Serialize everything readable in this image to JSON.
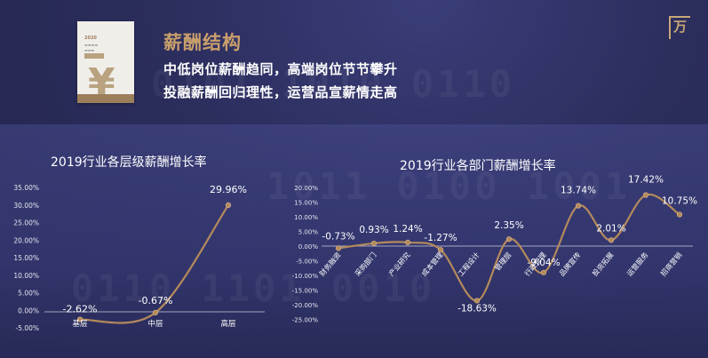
{
  "header": {
    "title": "薪酬结构",
    "line1": "中低岗位薪酬趋同，高端岗位节节攀升",
    "line2": "投融薪酬回归理性，运营品宣薪情走高"
  },
  "cover": {
    "year": "2020",
    "yen_symbol": "¥"
  },
  "logo": {
    "mark": "万"
  },
  "colors": {
    "line": "#b48a5c",
    "accent": "#c99f6b",
    "background": "#2a2c57"
  },
  "chart_data": [
    {
      "type": "line",
      "title": "2019行业各层级薪酬增长率",
      "categories": [
        "基层",
        "中层",
        "高层"
      ],
      "values": [
        -2.62,
        -0.67,
        29.96
      ],
      "data_labels": [
        "-2.62%",
        "-0.67%",
        "29.96%"
      ],
      "y_ticks": [
        "35.00%",
        "30.00%",
        "25.00%",
        "20.00%",
        "15.00%",
        "10.00%",
        "5.00%",
        "0.00%",
        "-5.00%"
      ],
      "ylim": [
        -5,
        35
      ],
      "smooth": true,
      "grid": false
    },
    {
      "type": "line",
      "title": "2019行业各部门薪酬增长率",
      "categories": [
        "财务融资",
        "采购部门",
        "产业研究",
        "成本管理",
        "工程设计",
        "管理层",
        "行政管理",
        "品牌宣传",
        "投资拓展",
        "运营服务",
        "招商营销"
      ],
      "values": [
        -0.73,
        0.93,
        1.24,
        -1.27,
        -18.63,
        2.35,
        -9.04,
        13.74,
        2.01,
        17.42,
        10.75
      ],
      "data_labels": [
        "-0.73%",
        "0.93%",
        "1.24%",
        "-1.27%",
        "-18.63%",
        "2.35%",
        "-9.04%",
        "13.74%",
        "2.01%",
        "17.42%",
        "10.75%"
      ],
      "y_ticks": [
        "20.00%",
        "15.00%",
        "10.00%",
        "5.00%",
        "0.00%",
        "-5.00%",
        "-10.00%",
        "-15.00%",
        "-20.00%",
        "-25.00%"
      ],
      "ylim": [
        -25,
        20
      ],
      "smooth": true,
      "grid": false
    }
  ]
}
